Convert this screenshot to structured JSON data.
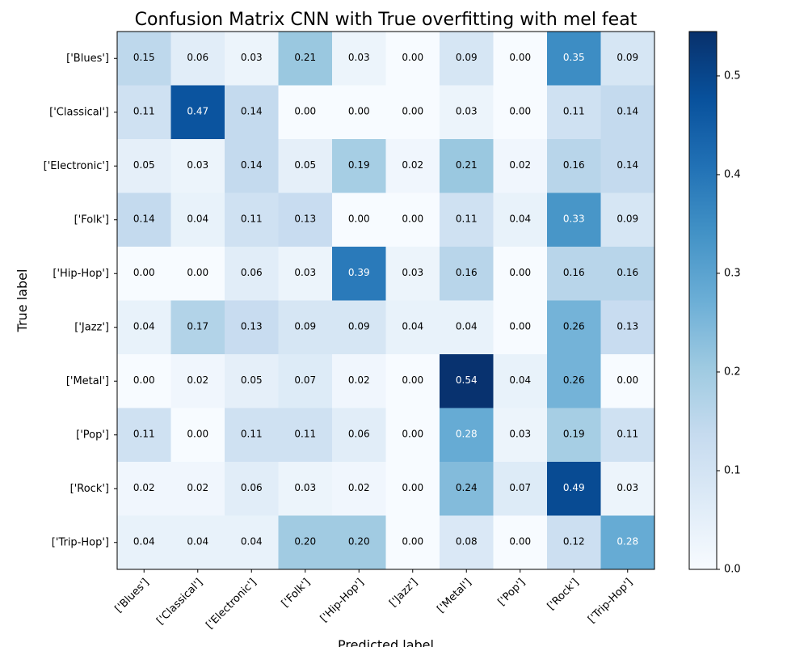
{
  "chart_data": {
    "type": "heatmap",
    "title": "Confusion Matrix CNN with True overfitting with mel feat",
    "xlabel": "Predicted label",
    "ylabel": "True label",
    "categories": [
      "['Blues']",
      "['Classical']",
      "['Electronic']",
      "['Folk']",
      "['Hip-Hop']",
      "['Jazz']",
      "['Metal']",
      "['Pop']",
      "['Rock']",
      "['Trip-Hop']"
    ],
    "values": [
      [
        0.15,
        0.06,
        0.03,
        0.21,
        0.03,
        0.0,
        0.09,
        0.0,
        0.35,
        0.09
      ],
      [
        0.11,
        0.47,
        0.14,
        0.0,
        0.0,
        0.0,
        0.03,
        0.0,
        0.11,
        0.14
      ],
      [
        0.05,
        0.03,
        0.14,
        0.05,
        0.19,
        0.02,
        0.21,
        0.02,
        0.16,
        0.14
      ],
      [
        0.14,
        0.04,
        0.11,
        0.13,
        0.0,
        0.0,
        0.11,
        0.04,
        0.33,
        0.09
      ],
      [
        0.0,
        0.0,
        0.06,
        0.03,
        0.39,
        0.03,
        0.16,
        0.0,
        0.16,
        0.16
      ],
      [
        0.04,
        0.17,
        0.13,
        0.09,
        0.09,
        0.04,
        0.04,
        0.0,
        0.26,
        0.13
      ],
      [
        0.0,
        0.02,
        0.05,
        0.07,
        0.02,
        0.0,
        0.54,
        0.04,
        0.26,
        0.0
      ],
      [
        0.11,
        0.0,
        0.11,
        0.11,
        0.06,
        0.0,
        0.28,
        0.03,
        0.19,
        0.11
      ],
      [
        0.02,
        0.02,
        0.06,
        0.03,
        0.02,
        0.0,
        0.24,
        0.07,
        0.49,
        0.03
      ],
      [
        0.04,
        0.04,
        0.04,
        0.2,
        0.2,
        0.0,
        0.08,
        0.0,
        0.12,
        0.28
      ]
    ],
    "colormap": "Blues",
    "colorbar": {
      "range": [
        0,
        0.545
      ],
      "ticks": [
        0.0,
        0.1,
        0.2,
        0.3,
        0.4,
        0.5
      ],
      "tick_labels": [
        "0.0",
        "0.1",
        "0.2",
        "0.3",
        "0.4",
        "0.5"
      ]
    },
    "grid": false,
    "text_color_threshold": 0.27
  }
}
